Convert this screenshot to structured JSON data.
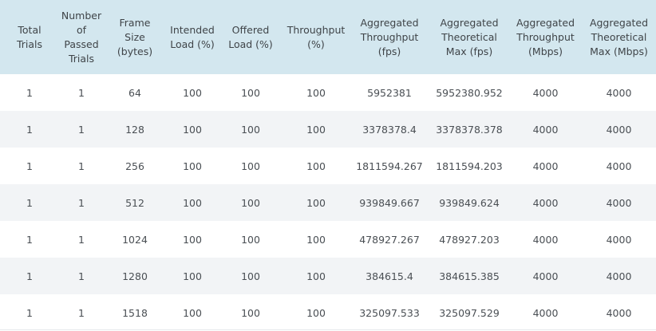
{
  "table": {
    "headers": [
      "Total\nTrials",
      "Number\nof Passed\nTrials",
      "Frame\nSize\n(bytes)",
      "Intended\nLoad (%)",
      "Offered\nLoad (%)",
      "Throughput\n(%)",
      "Aggregated\nThroughput\n(fps)",
      "Aggregated\nTheoretical\nMax (fps)",
      "Aggregated\nThroughput\n(Mbps)",
      "Aggregated\nTheoretical\nMax (Mbps)"
    ],
    "rows": [
      [
        "1",
        "1",
        "64",
        "100",
        "100",
        "100",
        "5952381",
        "5952380.952",
        "4000",
        "4000"
      ],
      [
        "1",
        "1",
        "128",
        "100",
        "100",
        "100",
        "3378378.4",
        "3378378.378",
        "4000",
        "4000"
      ],
      [
        "1",
        "1",
        "256",
        "100",
        "100",
        "100",
        "1811594.267",
        "1811594.203",
        "4000",
        "4000"
      ],
      [
        "1",
        "1",
        "512",
        "100",
        "100",
        "100",
        "939849.667",
        "939849.624",
        "4000",
        "4000"
      ],
      [
        "1",
        "1",
        "1024",
        "100",
        "100",
        "100",
        "478927.267",
        "478927.203",
        "4000",
        "4000"
      ],
      [
        "1",
        "1",
        "1280",
        "100",
        "100",
        "100",
        "384615.4",
        "384615.385",
        "4000",
        "4000"
      ],
      [
        "1",
        "1",
        "1518",
        "100",
        "100",
        "100",
        "325097.533",
        "325097.529",
        "4000",
        "4000"
      ]
    ]
  },
  "colors": {
    "header_background": "#d3e7ef",
    "row_alt_background": "#f2f4f6",
    "text": "#4a4f54"
  }
}
